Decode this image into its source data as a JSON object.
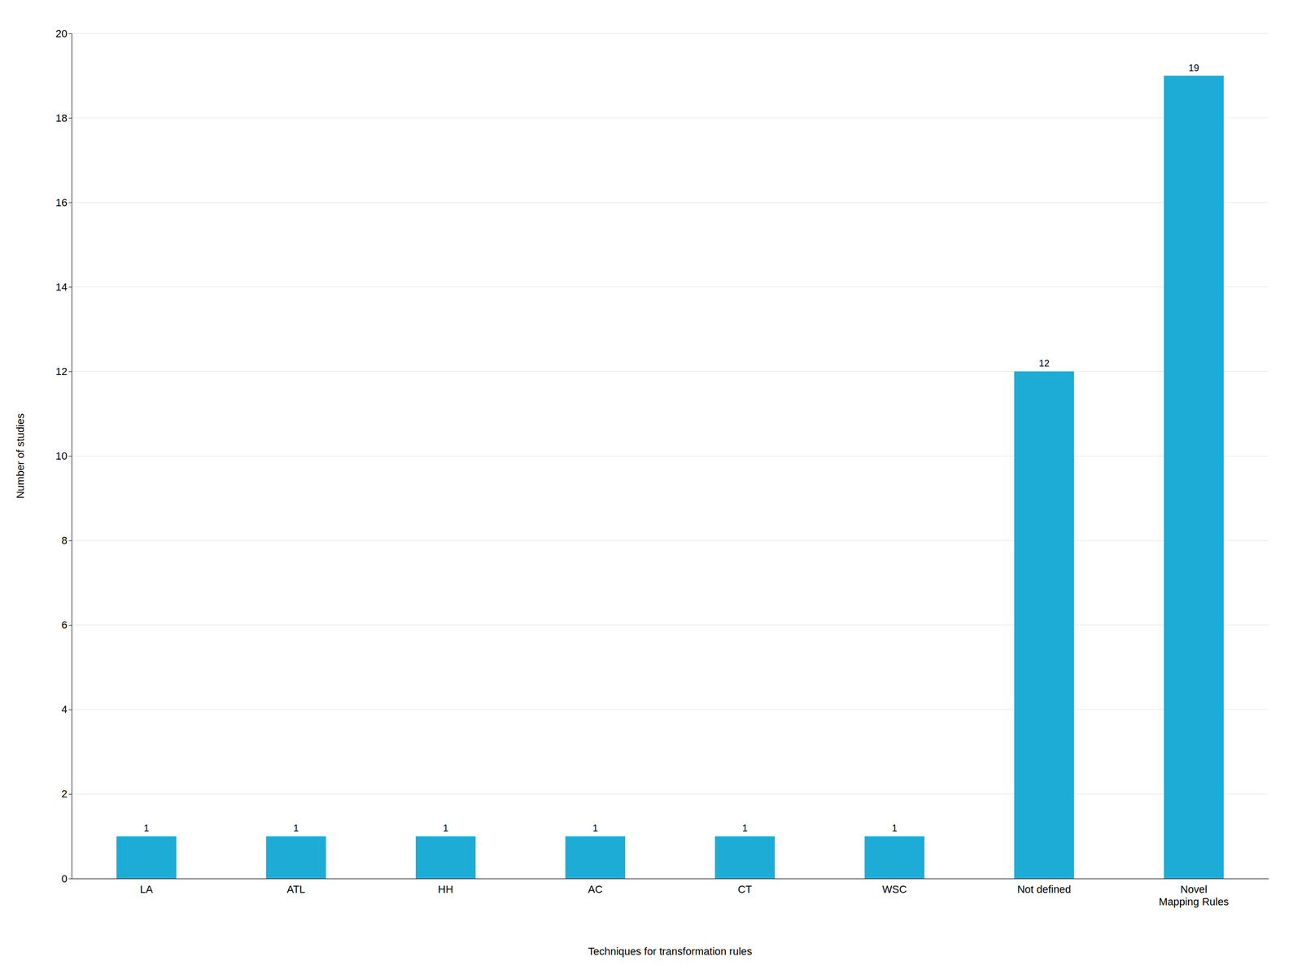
{
  "chart_data": {
    "type": "bar",
    "categories": [
      "LA",
      "ATL",
      "HH",
      "AC",
      "CT",
      "WSC",
      "Not defined",
      "Novel\nMapping Rules"
    ],
    "values": [
      1,
      1,
      1,
      1,
      1,
      1,
      12,
      19
    ],
    "color": "#1dacd6",
    "xlabel": "Techniques for transformation rules",
    "ylabel": "Number of studies",
    "ylim": [
      0,
      20
    ],
    "yticks": [
      0,
      2,
      4,
      6,
      8,
      10,
      12,
      14,
      16,
      18,
      20
    ],
    "grid": true,
    "data_labels": true
  }
}
